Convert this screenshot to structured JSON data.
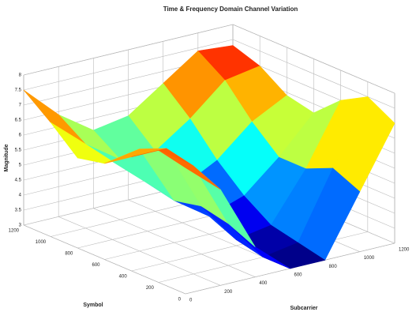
{
  "chart_data": {
    "type": "surface",
    "title": "Time & Frequency Domain Channel Variation",
    "xlabel": "Subcarrier",
    "ylabel": "Symbol",
    "zlabel": "Magnitude",
    "x": [
      0,
      200,
      400,
      600,
      800,
      1000,
      1200
    ],
    "y": [
      0,
      200,
      400,
      600,
      800,
      1000,
      1200
    ],
    "z": [
      [
        7.2,
        6.2,
        4.0,
        3.0,
        3.0,
        5.0,
        7.0
      ],
      [
        7.4,
        6.6,
        4.4,
        3.0,
        3.2,
        5.4,
        7.5
      ],
      [
        6.8,
        6.8,
        4.6,
        3.2,
        3.4,
        5.0,
        7.0
      ],
      [
        6.2,
        6.4,
        4.4,
        3.6,
        4.0,
        5.0,
        6.2
      ],
      [
        6.0,
        5.6,
        4.6,
        4.2,
        4.8,
        5.8,
        6.4
      ],
      [
        6.8,
        5.8,
        5.0,
        5.0,
        5.8,
        6.8,
        7.0
      ],
      [
        7.5,
        6.4,
        5.6,
        5.8,
        6.6,
        7.4,
        7.3
      ]
    ],
    "xlim": [
      0,
      1200
    ],
    "xticks": [
      0,
      200,
      400,
      600,
      800,
      1000,
      1200
    ],
    "ylim": [
      0,
      1200
    ],
    "yticks": [
      0,
      200,
      400,
      600,
      800,
      1000,
      1200
    ],
    "zlim": [
      3,
      8
    ],
    "zticks": [
      3,
      3.5,
      4,
      4.5,
      5,
      5.5,
      6,
      6.5,
      7,
      7.5,
      8
    ],
    "colormap": "jet",
    "grid": true
  }
}
